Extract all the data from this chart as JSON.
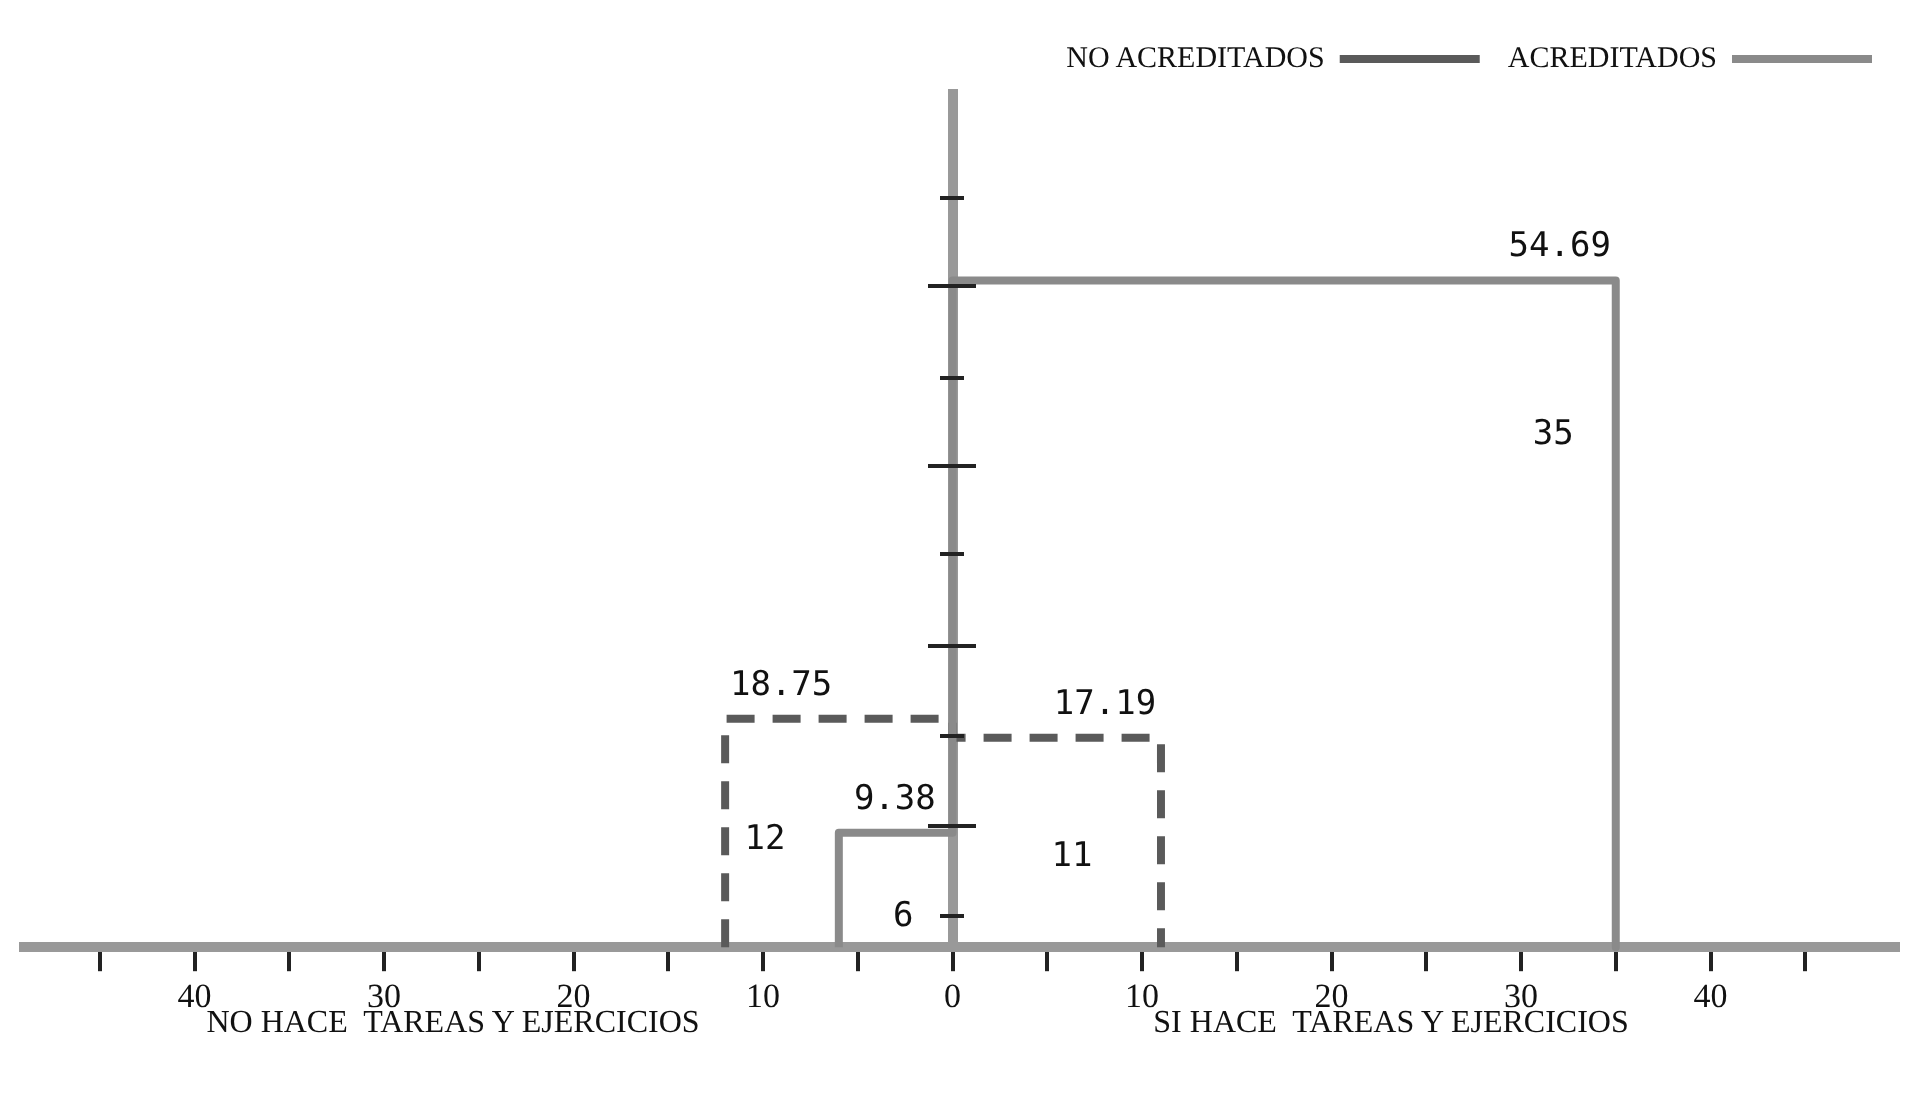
{
  "chart_data": {
    "type": "line",
    "series": [
      {
        "name": "ACREDITADOS",
        "color": "#8a8a8a",
        "line_style": "solid",
        "x": [
          -6,
          -6,
          0,
          0,
          35,
          35
        ],
        "values": [
          0,
          9.38,
          9.38,
          54.69,
          54.69,
          0
        ],
        "value_labels": [
          null,
          "9.38",
          null,
          null,
          "54.69",
          null
        ]
      },
      {
        "name": "NO ACREDITADOS",
        "color": "#5a5a5a",
        "line_style": "dashed",
        "x": [
          -12,
          -12,
          0,
          0,
          11,
          11
        ],
        "values": [
          0,
          18.75,
          18.75,
          17.19,
          17.19,
          0
        ],
        "value_labels": [
          null,
          "18.75",
          null,
          null,
          "17.19",
          null
        ]
      }
    ],
    "xlim": [
      -49,
      50
    ],
    "xticks": [
      {
        "value": -45,
        "label": null
      },
      {
        "value": -40,
        "label": "40"
      },
      {
        "value": -35,
        "label": null
      },
      {
        "value": -30,
        "label": "30"
      },
      {
        "value": -25,
        "label": null
      },
      {
        "value": -20,
        "label": "20"
      },
      {
        "value": -15,
        "label": null
      },
      {
        "value": -10,
        "label": "10"
      },
      {
        "value": -5,
        "label": null
      },
      0,
      {
        "value": 5,
        "label": null
      },
      10,
      {
        "value": 15,
        "label": null
      },
      20,
      {
        "value": 25,
        "label": null
      },
      30,
      {
        "value": 35,
        "label": null
      },
      40,
      {
        "value": 45,
        "label": null
      }
    ],
    "tick_labels": "x",
    "legend": "top right",
    "annotations": [
      "35",
      "12",
      "6",
      "11",
      "NO HACE  TAREAS Y EJERCICIOS",
      "SI HACE  TAREAS Y EJERCICIOS"
    ]
  }
}
